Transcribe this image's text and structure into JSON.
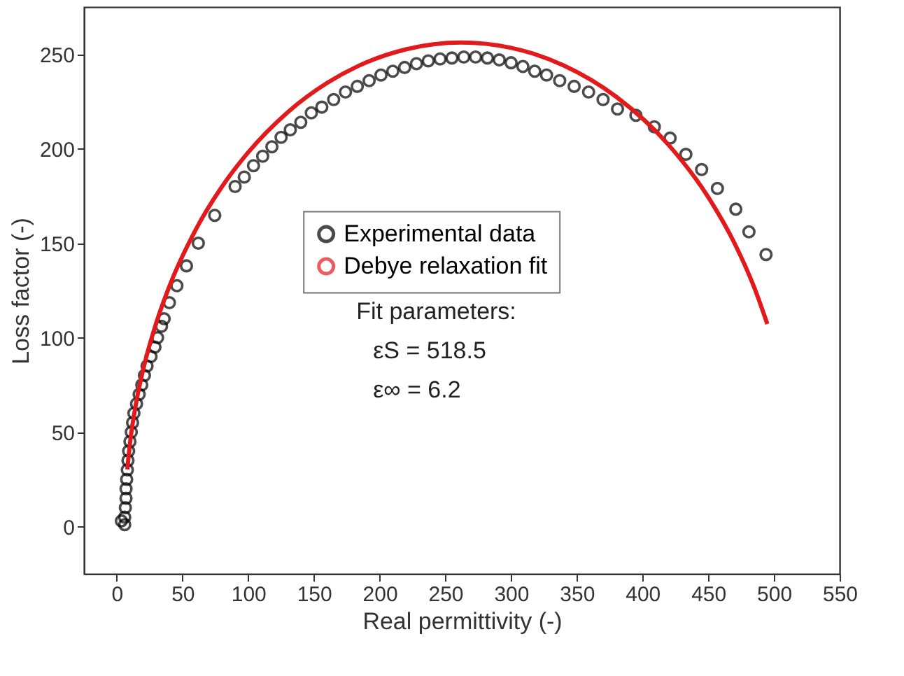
{
  "chart_data": {
    "type": "scatter",
    "xlabel": "Real permittivity (-)",
    "ylabel": "Loss factor (-)",
    "xlim": [
      -25,
      550
    ],
    "xticks": [
      0,
      50,
      100,
      150,
      200,
      250,
      300,
      350,
      400,
      450,
      500,
      550
    ],
    "ylim": [
      -25,
      275
    ],
    "yticks": [
      0,
      50,
      100,
      150,
      200,
      250
    ],
    "grid": false,
    "legend": "center",
    "annotations": [
      "Fit parameters:",
      "εS = 518.5",
      "ε∞ = 6.2"
    ],
    "series": [
      {
        "name": "Experimental data",
        "marker": "circle",
        "color": "#000000",
        "x": [
          3.5,
          6,
          6,
          6.5,
          7,
          7,
          7.5,
          8,
          8.5,
          9,
          10,
          11,
          12,
          13,
          15,
          17,
          19,
          21,
          23,
          26,
          29,
          31,
          34,
          36,
          40,
          45.7,
          53,
          62,
          74.5,
          90,
          97,
          104,
          111,
          118,
          125,
          132,
          140,
          148,
          156,
          165,
          174,
          183,
          192,
          201,
          210,
          219,
          228,
          237,
          246,
          255,
          264,
          273,
          282,
          291,
          300,
          309,
          318,
          327,
          337,
          348,
          359,
          370,
          381,
          395,
          409,
          421,
          433,
          445,
          457,
          471,
          481,
          494
        ],
        "values": [
          3,
          1,
          5,
          10,
          15,
          20,
          25,
          30,
          35,
          40,
          45,
          50,
          55,
          60,
          65,
          70,
          75,
          80,
          85,
          90,
          95,
          100,
          106,
          110,
          118.5,
          127.5,
          138,
          150,
          164.7,
          180,
          185,
          191,
          196,
          201,
          206,
          210,
          214,
          219,
          222,
          226,
          230,
          233,
          236,
          239,
          241,
          243,
          245,
          246.5,
          247.5,
          248,
          248.5,
          248.5,
          248,
          247,
          245.5,
          243.5,
          241,
          239,
          236,
          233,
          230,
          226,
          221,
          217.7,
          211.6,
          205.6,
          197,
          189,
          179,
          168,
          156,
          144
        ]
      },
      {
        "name": "Debye relaxation fit",
        "type": "line",
        "marker": "none",
        "line_style": "solid",
        "color": "#e31a1c",
        "x": [
          8,
          10,
          15,
          20,
          30,
          40,
          60,
          80,
          100,
          130,
          160,
          190,
          220,
          262,
          300,
          340,
          380,
          420,
          450,
          470,
          485,
          495
        ],
        "values": [
          30.3,
          44.0,
          66.6,
          82.9,
          107.8,
          127.2,
          157.1,
          179.9,
          198.1,
          219.3,
          234.8,
          245.7,
          252.6,
          256.2,
          253.4,
          244.1,
          227.5,
          201.9,
          174.4,
          150.0,
          126.6,
          107.2
        ]
      }
    ]
  }
}
